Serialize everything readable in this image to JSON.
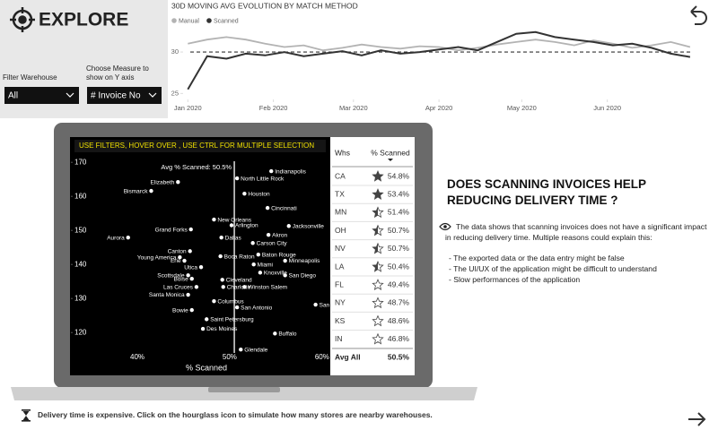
{
  "header": {
    "title": "EXPLORE"
  },
  "filters": [
    {
      "label": "Filter Warehouse",
      "value": "All"
    },
    {
      "label": "Choose Measure to show on Y axis",
      "value": "# Invoice No"
    }
  ],
  "chart_data": [
    {
      "type": "line",
      "title": "30D MOVING AVG EVOLUTION BY MATCH METHOD",
      "x": [
        0,
        7,
        14,
        21,
        28,
        35,
        42,
        49,
        56,
        63,
        70,
        77,
        84,
        91,
        98,
        105,
        112,
        119,
        126,
        133,
        140,
        147,
        154,
        161,
        168,
        175,
        182
      ],
      "series": [
        {
          "name": "Manual",
          "color": "#b3b3b3",
          "values": [
            31,
            31.5,
            31.8,
            31.5,
            31,
            30.6,
            30.8,
            30.2,
            30.5,
            30.9,
            30.6,
            30.4,
            30.7,
            30.6,
            30.2,
            30.5,
            30.9,
            31.2,
            31.5,
            31.2,
            30.8,
            31.4,
            31,
            30.5,
            30.8,
            31.2,
            30.6
          ]
        },
        {
          "name": "Scanned",
          "color": "#333333",
          "values": [
            25.5,
            29.5,
            29.2,
            29.8,
            29.6,
            30,
            29.5,
            29.8,
            30.1,
            29.6,
            30.2,
            29.8,
            30,
            30.3,
            30.6,
            30.2,
            31.2,
            32.2,
            32.4,
            31.8,
            31.5,
            31.2,
            30.8,
            31,
            30.5,
            29.8,
            29.4
          ]
        }
      ],
      "reference_line": 30,
      "xlim": [
        -4,
        183
      ],
      "xticks": [
        {
          "value": 0,
          "label": "Jan 2020"
        },
        {
          "value": 31,
          "label": "Feb 2020"
        },
        {
          "value": 60,
          "label": "Mar 2020"
        },
        {
          "value": 91,
          "label": "Apr 2020"
        },
        {
          "value": 121,
          "label": "May 2020"
        },
        {
          "value": 152,
          "label": "Jun 2020"
        }
      ],
      "ylim": [
        24.5,
        34
      ],
      "yticks": [
        25,
        30
      ],
      "legend": "top-left"
    },
    {
      "type": "scatter",
      "x_label": "% Scanned",
      "color": "#ffffff",
      "labels": [
        "Indianapolis",
        "Elizabeth",
        "North Little Rock",
        "Bismarck",
        "Houston",
        "Cincinnati",
        "New Orleans",
        "Arlington",
        "Jacksonville",
        "Aurora",
        "Grand Forks",
        "Dallas",
        "Akron",
        "Carson City",
        "Canton",
        "Boca Raton",
        "Baton Rouge",
        "Minneapolis",
        "Young America",
        "Erie",
        "Miami",
        "Utica",
        "Scottsdale",
        "Knoxville",
        "San Diego",
        "Boise",
        "Cleveland",
        "Las Cruces",
        "Charlotte",
        "Winston Salem",
        "Santa Monica",
        "Columbus",
        "San Jose",
        "San Antonio",
        "Bowie",
        "Saint Petersburg",
        "Des Moines",
        "Buffalo",
        "Glendale"
      ],
      "x": [
        54.5,
        44.4,
        50.8,
        41.5,
        51.6,
        54.1,
        48.3,
        50.2,
        56.4,
        39.0,
        45.8,
        49.1,
        54.2,
        52.5,
        45.7,
        49.0,
        53.1,
        56.0,
        44.6,
        45.1,
        52.6,
        46.9,
        45.5,
        53.3,
        56.0,
        45.9,
        49.2,
        46.4,
        49.3,
        51.6,
        45.5,
        48.3,
        59.3,
        50.8,
        45.9,
        47.5,
        47.1,
        54.9,
        51.2
      ],
      "values": [
        167.4,
        164.2,
        165.3,
        161.6,
        160.8,
        156.6,
        153.2,
        151.5,
        151.3,
        147.9,
        150.3,
        147.9,
        148.7,
        146.3,
        143.9,
        142.4,
        142.9,
        141.1,
        142.1,
        141.1,
        140,
        139.2,
        136.8,
        137.6,
        136.8,
        135.8,
        135.5,
        133.4,
        133.4,
        133.4,
        131.1,
        129.2,
        128.2,
        127.4,
        126.6,
        123.9,
        121.1,
        119.7,
        115
      ],
      "reference_line": {
        "value": 50.5,
        "label": "Avg % Scanned: 50.5%"
      },
      "xlim": [
        33,
        60.6
      ],
      "xticks": [
        {
          "value": 40,
          "label": "40%"
        },
        {
          "value": 50,
          "label": "50%"
        },
        {
          "value": 60,
          "label": "60%"
        }
      ],
      "ylim": [
        114,
        174
      ],
      "yticks": [
        120,
        130,
        140,
        150,
        160,
        170
      ]
    }
  ],
  "banner": "USE FILTERS, HOVER OVER , USE CTRL FOR MULTIPLE SELECTION",
  "table": {
    "columns": [
      "Whs",
      "% Scanned"
    ],
    "rows": [
      [
        "CA",
        "54.8%"
      ],
      [
        "TX",
        "53.4%"
      ],
      [
        "MN",
        "51.4%"
      ],
      [
        "OH",
        "50.7%"
      ],
      [
        "NV",
        "50.7%"
      ],
      [
        "LA",
        "50.4%"
      ],
      [
        "FL",
        "49.4%"
      ],
      [
        "NY",
        "48.7%"
      ],
      [
        "KS",
        "48.6%"
      ],
      [
        "IN",
        "46.8%"
      ]
    ],
    "total": [
      "Avg All",
      "50.5%"
    ]
  },
  "insight": {
    "title": "DOES SCANNING INVOICES HELP REDUCING DELIVERY TIME ?",
    "text": "The data shows that scanning invoices does not have a significant impact in reducing delivery time. Multiple reasons could explain this:",
    "bullets": [
      "- The exported data or the data entry might be false",
      "- The UI/UX of the application might be difficult to understand",
      "- Slow performances of the application"
    ]
  },
  "footer": {
    "text": "Delivery time is expensive. Click on the hourglass icon to simulate how many stores are nearby warehouses."
  }
}
